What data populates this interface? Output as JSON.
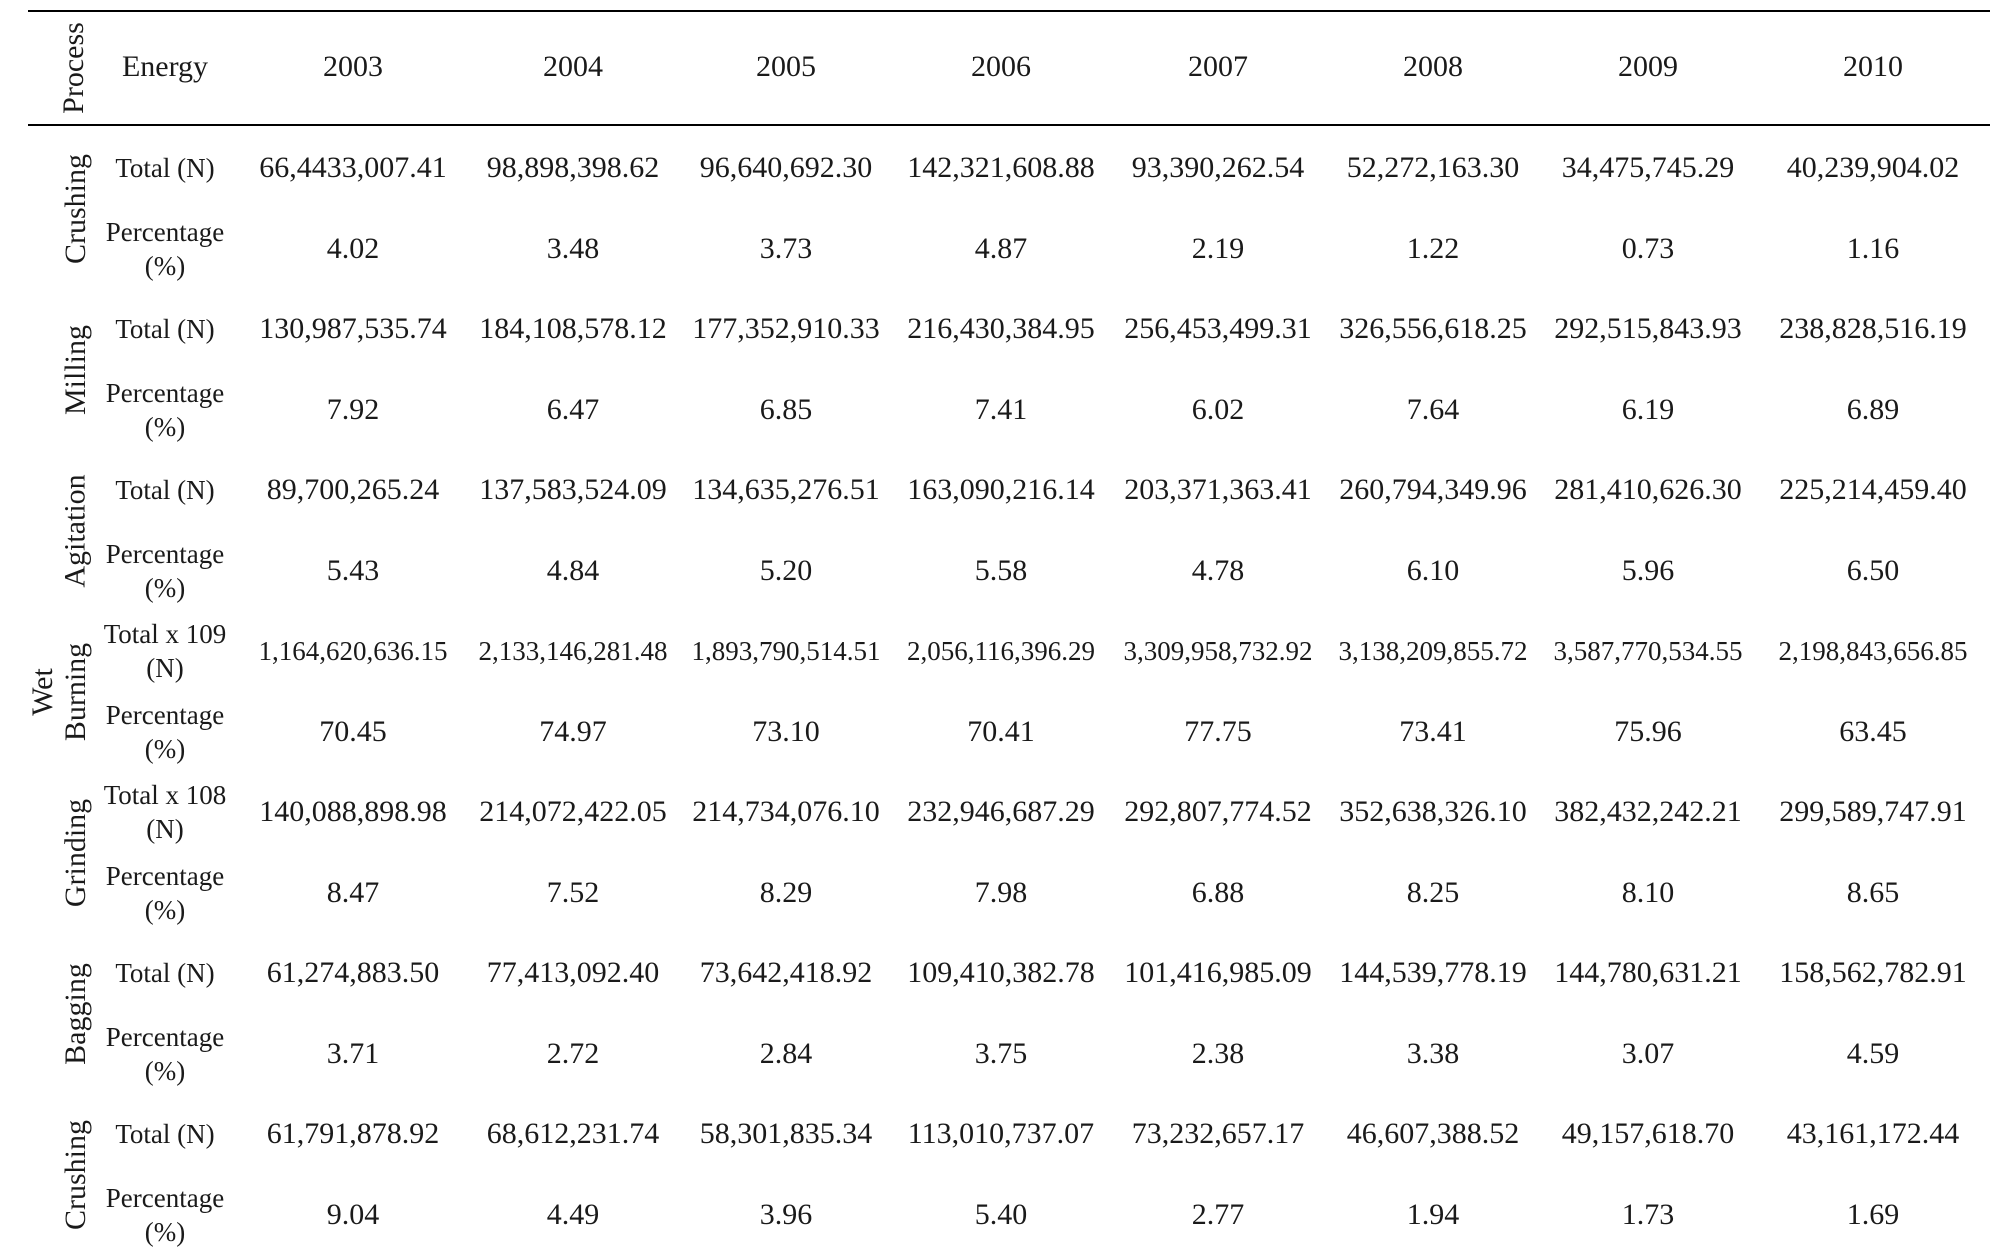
{
  "header": {
    "process": "Process",
    "energy": "Energy",
    "years": [
      "2003",
      "2004",
      "2005",
      "2006",
      "2007",
      "2008",
      "2009",
      "2010"
    ]
  },
  "group_label": "Wet",
  "processes": [
    {
      "name": "Crushing",
      "rows": [
        {
          "energy": "Total (N)",
          "values": [
            "66,4433,007.41",
            "98,898,398.62",
            "96,640,692.30",
            "142,321,608.88",
            "93,390,262.54",
            "52,272,163.30",
            "34,475,745.29",
            "40,239,904.02"
          ]
        },
        {
          "energy": "Percentage (%)",
          "values": [
            "4.02",
            "3.48",
            "3.73",
            "4.87",
            "2.19",
            "1.22",
            "0.73",
            "1.16"
          ]
        }
      ]
    },
    {
      "name": "Milling",
      "rows": [
        {
          "energy": "Total (N)",
          "values": [
            "130,987,535.74",
            "184,108,578.12",
            "177,352,910.33",
            "216,430,384.95",
            "256,453,499.31",
            "326,556,618.25",
            "292,515,843.93",
            "238,828,516.19"
          ]
        },
        {
          "energy": "Percentage (%)",
          "values": [
            "7.92",
            "6.47",
            "6.85",
            "7.41",
            "6.02",
            "7.64",
            "6.19",
            "6.89"
          ]
        }
      ]
    },
    {
      "name": "Agitation",
      "rows": [
        {
          "energy": "Total (N)",
          "values": [
            "89,700,265.24",
            "137,583,524.09",
            "134,635,276.51",
            "163,090,216.14",
            "203,371,363.41",
            "260,794,349.96",
            "281,410,626.30",
            "225,214,459.40"
          ]
        },
        {
          "energy": "Percentage (%)",
          "values": [
            "5.43",
            "4.84",
            "5.20",
            "5.58",
            "4.78",
            "6.10",
            "5.96",
            "6.50"
          ]
        }
      ]
    },
    {
      "name": "Burning",
      "rows": [
        {
          "energy": "Total x 109 (N)",
          "values": [
            "1,164,620,636.15",
            "2,133,146,281.48",
            "1,893,790,514.51",
            "2,056,116,396.29",
            "3,309,958,732.92",
            "3,138,209,855.72",
            "3,587,770,534.55",
            "2,198,843,656.85"
          ]
        },
        {
          "energy": "Percentage (%)",
          "values": [
            "70.45",
            "74.97",
            "73.10",
            "70.41",
            "77.75",
            "73.41",
            "75.96",
            "63.45"
          ]
        }
      ]
    },
    {
      "name": "Grinding",
      "rows": [
        {
          "energy": "Total x 108 (N)",
          "values": [
            "140,088,898.98",
            "214,072,422.05",
            "214,734,076.10",
            "232,946,687.29",
            "292,807,774.52",
            "352,638,326.10",
            "382,432,242.21",
            "299,589,747.91"
          ]
        },
        {
          "energy": "Percentage (%)",
          "values": [
            "8.47",
            "7.52",
            "8.29",
            "7.98",
            "6.88",
            "8.25",
            "8.10",
            "8.65"
          ]
        }
      ]
    },
    {
      "name": "Bagging",
      "rows": [
        {
          "energy": "Total (N)",
          "values": [
            "61,274,883.50",
            "77,413,092.40",
            "73,642,418.92",
            "109,410,382.78",
            "101,416,985.09",
            "144,539,778.19",
            "144,780,631.21",
            "158,562,782.91"
          ]
        },
        {
          "energy": "Percentage (%)",
          "values": [
            "3.71",
            "2.72",
            "2.84",
            "3.75",
            "2.38",
            "3.38",
            "3.07",
            "4.59"
          ]
        }
      ]
    },
    {
      "name": "Crushing",
      "rows": [
        {
          "energy": "Total (N)",
          "values": [
            "61,791,878.92",
            "68,612,231.74",
            "58,301,835.34",
            "113,010,737.07",
            "73,232,657.17",
            "46,607,388.52",
            "49,157,618.70",
            "43,161,172.44"
          ]
        },
        {
          "energy": "Percentage (%)",
          "values": [
            "9.04",
            "4.49",
            "3.96",
            "5.40",
            "2.77",
            "1.94",
            "1.73",
            "1.69"
          ]
        }
      ]
    }
  ]
}
